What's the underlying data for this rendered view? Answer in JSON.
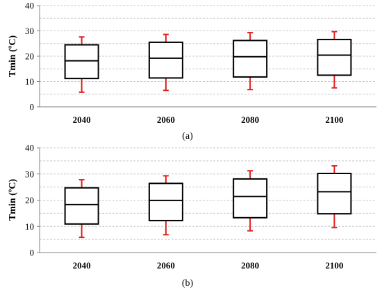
{
  "colors": {
    "box": "#000000",
    "whisker": "#e02020",
    "grid": "#c8c8c8",
    "axis": "#808080"
  },
  "chart_data": [
    {
      "type": "box",
      "caption": "(a)",
      "ylabel": "Tmin (ºC)",
      "ylim": [
        0,
        40
      ],
      "yticks": [
        "0",
        "10",
        "20",
        "30",
        "40"
      ],
      "grid": "horizontal dashed, every 5",
      "categories": [
        "2040",
        "2060",
        "2080",
        "2100"
      ],
      "boxes": [
        {
          "whisker_low": 5.8,
          "q1": 11.2,
          "median": 18.2,
          "q3": 24.5,
          "whisker_high": 27.6
        },
        {
          "whisker_low": 6.5,
          "q1": 11.4,
          "median": 19.2,
          "q3": 25.5,
          "whisker_high": 28.6
        },
        {
          "whisker_low": 6.8,
          "q1": 11.8,
          "median": 19.8,
          "q3": 26.2,
          "whisker_high": 29.3
        },
        {
          "whisker_low": 7.5,
          "q1": 12.5,
          "median": 20.4,
          "q3": 26.6,
          "whisker_high": 29.7
        }
      ]
    },
    {
      "type": "box",
      "caption": "(b)",
      "ylabel": "Tmin (ºC)",
      "ylim": [
        0,
        40
      ],
      "yticks": [
        "0",
        "10",
        "20",
        "30",
        "40"
      ],
      "grid": "horizontal dashed, every 5",
      "categories": [
        "2040",
        "2060",
        "2080",
        "2100"
      ],
      "boxes": [
        {
          "whisker_low": 5.8,
          "q1": 10.9,
          "median": 18.3,
          "q3": 24.7,
          "whisker_high": 27.8
        },
        {
          "whisker_low": 6.8,
          "q1": 12.2,
          "median": 19.9,
          "q3": 26.4,
          "whisker_high": 29.3
        },
        {
          "whisker_low": 8.3,
          "q1": 13.3,
          "median": 21.4,
          "q3": 28.1,
          "whisker_high": 31.2
        },
        {
          "whisker_low": 9.5,
          "q1": 14.8,
          "median": 23.2,
          "q3": 30.2,
          "whisker_high": 33.1
        }
      ]
    }
  ]
}
